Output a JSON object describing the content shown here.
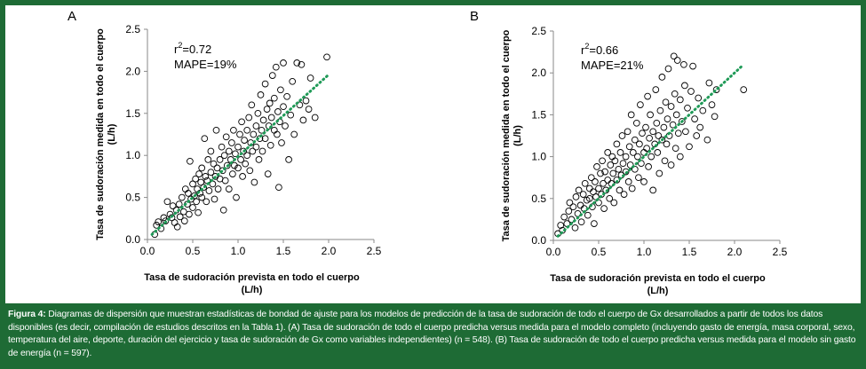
{
  "figure": {
    "caption_label": "Figura 4:",
    "caption_text": " Diagramas de dispersión que muestran estadísticas de bondad de ajuste para los modelos de predicción de la tasa de sudoración de todo el cuerpo de Gx desarrollados a partir de todos los datos disponibles (es decir, compilación de estudios descritos en la Tabla 1). (A) Tasa de sudoración de todo el cuerpo predicha versus medida para el modelo completo (incluyendo gasto de energía, masa corporal, sexo, temperatura del aire, deporte, duración del ejercicio y tasa de sudoración de Gx como variables independientes) (n = 548). (B) Tasa de sudoración de todo el cuerpo predicha versus medida para el modelo sin gasto de energía (n = 597)."
  },
  "colors": {
    "frame": "#1e6b35",
    "trendline": "#1f9a57",
    "marker": "#000000"
  },
  "chart_data": [
    {
      "type": "scatter",
      "panel_label": "A",
      "xlabel": "Tasa de sudoración prevista en todo el cuerpo",
      "xlabel_unit": "(L/h)",
      "ylabel": "Tasa de sudoración medida en todo el cuerpo",
      "ylabel_unit": "(L/h)",
      "xlim": [
        0,
        2.5
      ],
      "ylim": [
        0,
        2.5
      ],
      "xticks": [
        "0.0",
        "0.5",
        "1.0",
        "1.5",
        "2.0",
        "2.5"
      ],
      "yticks": [
        "0.0",
        "0.5",
        "1.0",
        "1.5",
        "2.0",
        "2.5"
      ],
      "stat_r2_prefix": "r",
      "stat_r2_sup": "2",
      "stat_r2_value": "=0.72",
      "stat_mape": "MAPE=19%",
      "n": 548,
      "marker": "open-circle",
      "trendline": {
        "style": "dotted",
        "x": [
          0.05,
          2.0
        ],
        "y": [
          0.06,
          1.96
        ]
      },
      "points": [
        [
          0.08,
          0.06
        ],
        [
          0.1,
          0.17
        ],
        [
          0.12,
          0.21
        ],
        [
          0.15,
          0.13
        ],
        [
          0.18,
          0.26
        ],
        [
          0.2,
          0.22
        ],
        [
          0.22,
          0.45
        ],
        [
          0.25,
          0.3
        ],
        [
          0.27,
          0.26
        ],
        [
          0.28,
          0.4
        ],
        [
          0.3,
          0.2
        ],
        [
          0.32,
          0.35
        ],
        [
          0.33,
          0.15
        ],
        [
          0.35,
          0.42
        ],
        [
          0.36,
          0.27
        ],
        [
          0.38,
          0.5
        ],
        [
          0.4,
          0.33
        ],
        [
          0.41,
          0.22
        ],
        [
          0.42,
          0.6
        ],
        [
          0.44,
          0.42
        ],
        [
          0.45,
          0.55
        ],
        [
          0.46,
          0.3
        ],
        [
          0.47,
          0.93
        ],
        [
          0.48,
          0.48
        ],
        [
          0.5,
          0.38
        ],
        [
          0.5,
          0.66
        ],
        [
          0.52,
          0.52
        ],
        [
          0.53,
          0.72
        ],
        [
          0.54,
          0.45
        ],
        [
          0.55,
          0.6
        ],
        [
          0.56,
          0.32
        ],
        [
          0.57,
          0.78
        ],
        [
          0.58,
          0.55
        ],
        [
          0.59,
          0.68
        ],
        [
          0.6,
          0.5
        ],
        [
          0.6,
          0.85
        ],
        [
          0.62,
          0.62
        ],
        [
          0.63,
          1.2
        ],
        [
          0.64,
          0.75
        ],
        [
          0.65,
          0.45
        ],
        [
          0.66,
          0.7
        ],
        [
          0.67,
          0.95
        ],
        [
          0.68,
          0.58
        ],
        [
          0.7,
          0.8
        ],
        [
          0.7,
          1.05
        ],
        [
          0.72,
          0.66
        ],
        [
          0.73,
          0.9
        ],
        [
          0.74,
          0.48
        ],
        [
          0.75,
          0.75
        ],
        [
          0.76,
          1.3
        ],
        [
          0.77,
          0.85
        ],
        [
          0.78,
          0.6
        ],
        [
          0.8,
          0.95
        ],
        [
          0.8,
          0.72
        ],
        [
          0.82,
          1.1
        ],
        [
          0.83,
          0.82
        ],
        [
          0.84,
          0.35
        ],
        [
          0.85,
          1.0
        ],
        [
          0.86,
          0.7
        ],
        [
          0.87,
          1.22
        ],
        [
          0.88,
          0.88
        ],
        [
          0.9,
          1.05
        ],
        [
          0.9,
          0.6
        ],
        [
          0.92,
          0.95
        ],
        [
          0.93,
          1.15
        ],
        [
          0.94,
          0.78
        ],
        [
          0.95,
          1.3
        ],
        [
          0.96,
          0.88
        ],
        [
          0.97,
          1.02
        ],
        [
          0.98,
          0.5
        ],
        [
          1.0,
          1.1
        ],
        [
          1.0,
          0.85
        ],
        [
          1.02,
          1.25
        ],
        [
          1.03,
          0.95
        ],
        [
          1.04,
          1.4
        ],
        [
          1.05,
          0.75
        ],
        [
          1.06,
          1.05
        ],
        [
          1.07,
          1.18
        ],
        [
          1.08,
          0.9
        ],
        [
          1.1,
          1.3
        ],
        [
          1.1,
          1.0
        ],
        [
          1.12,
          1.45
        ],
        [
          1.13,
          0.82
        ],
        [
          1.14,
          1.15
        ],
        [
          1.15,
          1.6
        ],
        [
          1.16,
          1.05
        ],
        [
          1.17,
          1.25
        ],
        [
          1.18,
          0.68
        ],
        [
          1.2,
          1.35
        ],
        [
          1.2,
          1.1
        ],
        [
          1.22,
          1.5
        ],
        [
          1.23,
          0.95
        ],
        [
          1.24,
          1.2
        ],
        [
          1.25,
          1.72
        ],
        [
          1.26,
          1.3
        ],
        [
          1.27,
          1.05
        ],
        [
          1.28,
          1.42
        ],
        [
          1.3,
          1.2
        ],
        [
          1.3,
          1.85
        ],
        [
          1.32,
          1.55
        ],
        [
          1.33,
          0.78
        ],
        [
          1.34,
          1.35
        ],
        [
          1.35,
          1.62
        ],
        [
          1.36,
          1.12
        ],
        [
          1.37,
          1.45
        ],
        [
          1.38,
          1.95
        ],
        [
          1.4,
          1.3
        ],
        [
          1.4,
          1.68
        ],
        [
          1.42,
          2.05
        ],
        [
          1.43,
          1.25
        ],
        [
          1.44,
          1.52
        ],
        [
          1.45,
          0.62
        ],
        [
          1.46,
          1.4
        ],
        [
          1.47,
          1.78
        ],
        [
          1.48,
          1.15
        ],
        [
          1.5,
          1.58
        ],
        [
          1.5,
          2.1
        ],
        [
          1.52,
          1.35
        ],
        [
          1.54,
          1.7
        ],
        [
          1.56,
          0.95
        ],
        [
          1.58,
          1.48
        ],
        [
          1.6,
          1.88
        ],
        [
          1.62,
          1.25
        ],
        [
          1.65,
          2.1
        ],
        [
          1.68,
          1.6
        ],
        [
          1.7,
          2.08
        ],
        [
          1.72,
          1.42
        ],
        [
          1.75,
          1.65
        ],
        [
          1.78,
          1.55
        ],
        [
          1.8,
          1.92
        ],
        [
          1.85,
          1.45
        ],
        [
          1.98,
          2.17
        ]
      ]
    },
    {
      "type": "scatter",
      "panel_label": "B",
      "xlabel": "Tasa de sudoración prevista en todo el cuerpo",
      "xlabel_unit": "(L/h)",
      "ylabel": "Tasa de sudoración medida en todo el cuerpo",
      "ylabel_unit": "(L/h)",
      "xlim": [
        0,
        2.5
      ],
      "ylim": [
        0,
        2.5
      ],
      "xticks": [
        "0.0",
        "0.5",
        "1.0",
        "1.5",
        "2.0",
        "2.5"
      ],
      "yticks": [
        "0.0",
        "0.5",
        "1.0",
        "1.5",
        "2.0",
        "2.5"
      ],
      "stat_r2_prefix": "r",
      "stat_r2_sup": "2",
      "stat_r2_value": "=0.66",
      "stat_mape": "MAPE=21%",
      "n": 597,
      "marker": "open-circle",
      "trendline": {
        "style": "dotted",
        "x": [
          0.05,
          2.1
        ],
        "y": [
          0.05,
          2.1
        ]
      },
      "points": [
        [
          0.05,
          0.08
        ],
        [
          0.08,
          0.18
        ],
        [
          0.1,
          0.12
        ],
        [
          0.12,
          0.28
        ],
        [
          0.15,
          0.2
        ],
        [
          0.17,
          0.35
        ],
        [
          0.18,
          0.45
        ],
        [
          0.2,
          0.25
        ],
        [
          0.22,
          0.4
        ],
        [
          0.24,
          0.15
        ],
        [
          0.25,
          0.52
        ],
        [
          0.27,
          0.32
        ],
        [
          0.28,
          0.6
        ],
        [
          0.3,
          0.42
        ],
        [
          0.31,
          0.22
        ],
        [
          0.33,
          0.55
        ],
        [
          0.34,
          0.38
        ],
        [
          0.35,
          0.68
        ],
        [
          0.37,
          0.48
        ],
        [
          0.38,
          0.3
        ],
        [
          0.4,
          0.62
        ],
        [
          0.4,
          0.5
        ],
        [
          0.42,
          0.75
        ],
        [
          0.43,
          0.4
        ],
        [
          0.44,
          0.58
        ],
        [
          0.45,
          0.2
        ],
        [
          0.46,
          0.7
        ],
        [
          0.47,
          0.52
        ],
        [
          0.48,
          0.88
        ],
        [
          0.5,
          0.62
        ],
        [
          0.5,
          0.45
        ],
        [
          0.52,
          0.8
        ],
        [
          0.53,
          0.55
        ],
        [
          0.54,
          0.95
        ],
        [
          0.55,
          0.68
        ],
        [
          0.56,
          0.38
        ],
        [
          0.57,
          0.82
        ],
        [
          0.58,
          0.6
        ],
        [
          0.6,
          1.05
        ],
        [
          0.6,
          0.72
        ],
        [
          0.62,
          0.5
        ],
        [
          0.63,
          0.9
        ],
        [
          0.64,
          0.68
        ],
        [
          0.65,
          1.0
        ],
        [
          0.66,
          0.8
        ],
        [
          0.67,
          0.45
        ],
        [
          0.68,
          0.95
        ],
        [
          0.7,
          0.72
        ],
        [
          0.7,
          1.15
        ],
        [
          0.72,
          0.85
        ],
        [
          0.73,
          0.6
        ],
        [
          0.74,
          1.05
        ],
        [
          0.75,
          0.78
        ],
        [
          0.76,
          1.25
        ],
        [
          0.77,
          0.92
        ],
        [
          0.78,
          0.55
        ],
        [
          0.8,
          1.0
        ],
        [
          0.8,
          0.82
        ],
        [
          0.82,
          1.3
        ],
        [
          0.83,
          0.7
        ],
        [
          0.84,
          1.12
        ],
        [
          0.85,
          0.9
        ],
        [
          0.86,
          1.5
        ],
        [
          0.87,
          0.62
        ],
        [
          0.88,
          1.05
        ],
        [
          0.9,
          1.2
        ],
        [
          0.9,
          0.85
        ],
        [
          0.92,
          1.4
        ],
        [
          0.93,
          1.0
        ],
        [
          0.94,
          0.75
        ],
        [
          0.95,
          1.15
        ],
        [
          0.96,
          1.62
        ],
        [
          0.97,
          0.92
        ],
        [
          0.98,
          1.28
        ],
        [
          1.0,
          1.05
        ],
        [
          1.0,
          0.7
        ],
        [
          1.02,
          1.35
        ],
        [
          1.03,
          1.1
        ],
        [
          1.04,
          1.72
        ],
        [
          1.05,
          0.88
        ],
        [
          1.06,
          1.22
        ],
        [
          1.07,
          1.5
        ],
        [
          1.08,
          1.0
        ],
        [
          1.1,
          1.3
        ],
        [
          1.1,
          0.6
        ],
        [
          1.12,
          1.15
        ],
        [
          1.13,
          1.8
        ],
        [
          1.14,
          1.4
        ],
        [
          1.15,
          1.05
        ],
        [
          1.16,
          1.25
        ],
        [
          1.17,
          0.8
        ],
        [
          1.18,
          1.55
        ],
        [
          1.2,
          1.2
        ],
        [
          1.2,
          1.95
        ],
        [
          1.22,
          1.35
        ],
        [
          1.23,
          0.95
        ],
        [
          1.24,
          1.65
        ],
        [
          1.25,
          1.15
        ],
        [
          1.26,
          1.45
        ],
        [
          1.27,
          2.05
        ],
        [
          1.28,
          1.25
        ],
        [
          1.3,
          1.6
        ],
        [
          1.3,
          0.9
        ],
        [
          1.32,
          1.38
        ],
        [
          1.33,
          2.2
        ],
        [
          1.34,
          1.75
        ],
        [
          1.35,
          1.1
        ],
        [
          1.36,
          1.5
        ],
        [
          1.37,
          2.15
        ],
        [
          1.38,
          1.28
        ],
        [
          1.4,
          1.68
        ],
        [
          1.4,
          1.0
        ],
        [
          1.42,
          1.42
        ],
        [
          1.44,
          2.1
        ],
        [
          1.45,
          1.85
        ],
        [
          1.46,
          1.3
        ],
        [
          1.48,
          1.58
        ],
        [
          1.5,
          1.12
        ],
        [
          1.52,
          1.78
        ],
        [
          1.54,
          2.08
        ],
        [
          1.56,
          1.45
        ],
        [
          1.58,
          1.25
        ],
        [
          1.6,
          1.7
        ],
        [
          1.62,
          1.35
        ],
        [
          1.65,
          1.55
        ],
        [
          1.7,
          1.2
        ],
        [
          1.72,
          1.88
        ],
        [
          1.75,
          1.62
        ],
        [
          1.78,
          1.48
        ],
        [
          1.8,
          1.8
        ],
        [
          2.1,
          1.8
        ]
      ]
    }
  ]
}
